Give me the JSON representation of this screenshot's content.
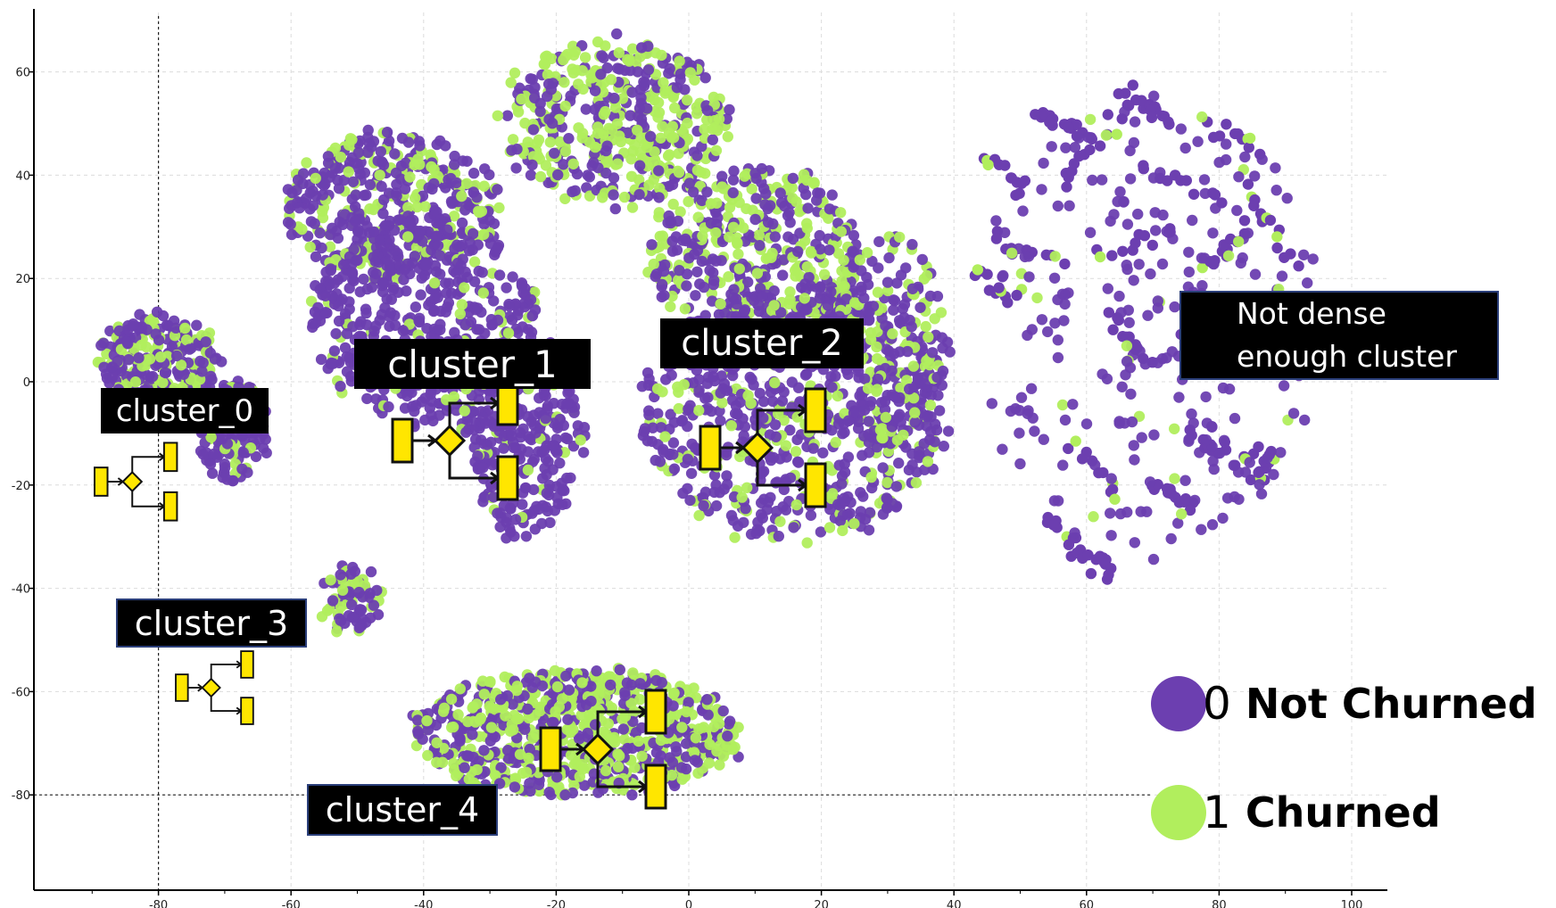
{
  "chart_data": {
    "type": "scatter",
    "title": "",
    "xlabel": "",
    "ylabel": "",
    "xlim": [
      -90,
      105
    ],
    "ylim": [
      -98,
      70
    ],
    "x_ticks": [
      -80,
      -60,
      -40,
      -20,
      0,
      20,
      40,
      60,
      80,
      100
    ],
    "y_ticks": [
      -80,
      -60,
      -40,
      -20,
      0,
      20,
      40,
      60
    ],
    "grid": true,
    "legend_position": "bottom-right",
    "series": [
      {
        "name": "Not Churned",
        "code": "0",
        "color": "#6c3fb0"
      },
      {
        "name": "Churned",
        "code": "1",
        "color": "#b1ee5d"
      }
    ],
    "clusters": [
      {
        "id": "cluster_0",
        "label": "cluster_0",
        "center": [
          -80,
          0
        ],
        "radius": [
          8.5,
          12
        ],
        "churn_ratio": 0.3
      },
      {
        "id": "cluster_1",
        "label": "cluster_1",
        "center": [
          -35,
          15
        ],
        "radius": [
          28,
          35
        ],
        "churn_ratio": 0.18
      },
      {
        "id": "cluster_2",
        "label": "cluster_2",
        "center": [
          15,
          15
        ],
        "radius": [
          26,
          38
        ],
        "churn_ratio": 0.35
      },
      {
        "id": "cluster_3",
        "label": "cluster_3",
        "center": [
          -51,
          -42
        ],
        "radius": [
          4,
          6
        ],
        "churn_ratio": 0.35
      },
      {
        "id": "cluster_4",
        "label": "cluster_4",
        "center": [
          -15,
          -70
        ],
        "radius": [
          27,
          14
        ],
        "churn_ratio": 0.5
      },
      {
        "id": "sparse",
        "label": "Not dense enough cluster",
        "center": [
          70,
          10
        ],
        "radius": [
          25,
          45
        ],
        "churn_ratio": 0.08
      }
    ],
    "reference_lines": [
      {
        "axis": "x",
        "value": -80
      },
      {
        "axis": "y",
        "value": -80
      }
    ]
  }
}
